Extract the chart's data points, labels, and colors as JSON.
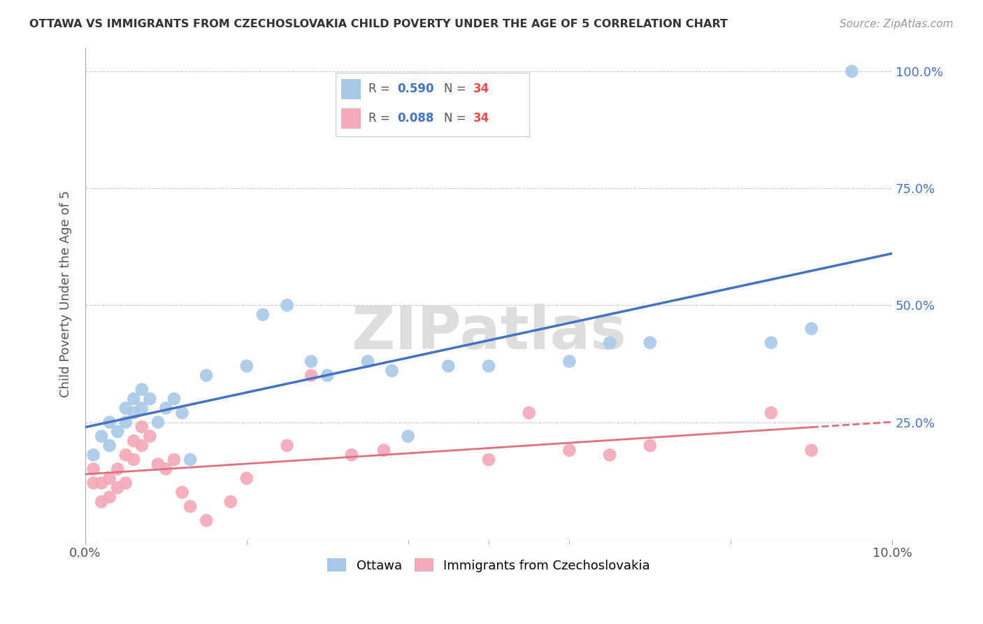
{
  "title": "OTTAWA VS IMMIGRANTS FROM CZECHOSLOVAKIA CHILD POVERTY UNDER THE AGE OF 5 CORRELATION CHART",
  "source": "Source: ZipAtlas.com",
  "ylabel": "Child Poverty Under the Age of 5",
  "xlim": [
    0.0,
    0.1
  ],
  "ylim": [
    0.0,
    1.05
  ],
  "yticks": [
    0.25,
    0.5,
    0.75,
    1.0
  ],
  "ytick_labels": [
    "25.0%",
    "50.0%",
    "75.0%",
    "100.0%"
  ],
  "xtick_labels": [
    "0.0%",
    "10.0%"
  ],
  "ottawa_color": "#a8c8e8",
  "immig_color": "#f4a8b8",
  "trendline_ottawa_color": "#4472c4",
  "trendline_immig_color": "#e07080",
  "background_color": "#ffffff",
  "watermark": "ZIPatlas",
  "ottawa_x": [
    0.001,
    0.002,
    0.003,
    0.003,
    0.004,
    0.005,
    0.005,
    0.006,
    0.006,
    0.007,
    0.007,
    0.008,
    0.009,
    0.01,
    0.011,
    0.012,
    0.013,
    0.015,
    0.02,
    0.022,
    0.025,
    0.028,
    0.03,
    0.035,
    0.038,
    0.04,
    0.045,
    0.05,
    0.06,
    0.065,
    0.07,
    0.085,
    0.09,
    0.095
  ],
  "ottawa_y": [
    0.18,
    0.22,
    0.2,
    0.25,
    0.23,
    0.25,
    0.28,
    0.27,
    0.3,
    0.28,
    0.32,
    0.3,
    0.25,
    0.28,
    0.3,
    0.27,
    0.17,
    0.35,
    0.37,
    0.48,
    0.5,
    0.38,
    0.35,
    0.38,
    0.36,
    0.22,
    0.37,
    0.37,
    0.38,
    0.42,
    0.42,
    0.42,
    0.45,
    1.0
  ],
  "immig_x": [
    0.001,
    0.001,
    0.002,
    0.002,
    0.003,
    0.003,
    0.004,
    0.004,
    0.005,
    0.005,
    0.006,
    0.006,
    0.007,
    0.007,
    0.008,
    0.009,
    0.01,
    0.011,
    0.012,
    0.013,
    0.015,
    0.018,
    0.02,
    0.025,
    0.028,
    0.033,
    0.037,
    0.05,
    0.055,
    0.06,
    0.065,
    0.07,
    0.085,
    0.09
  ],
  "immig_y": [
    0.12,
    0.15,
    0.08,
    0.12,
    0.09,
    0.13,
    0.11,
    0.15,
    0.12,
    0.18,
    0.17,
    0.21,
    0.2,
    0.24,
    0.22,
    0.16,
    0.15,
    0.17,
    0.1,
    0.07,
    0.04,
    0.08,
    0.13,
    0.2,
    0.35,
    0.18,
    0.19,
    0.17,
    0.27,
    0.19,
    0.18,
    0.2,
    0.27,
    0.19
  ]
}
